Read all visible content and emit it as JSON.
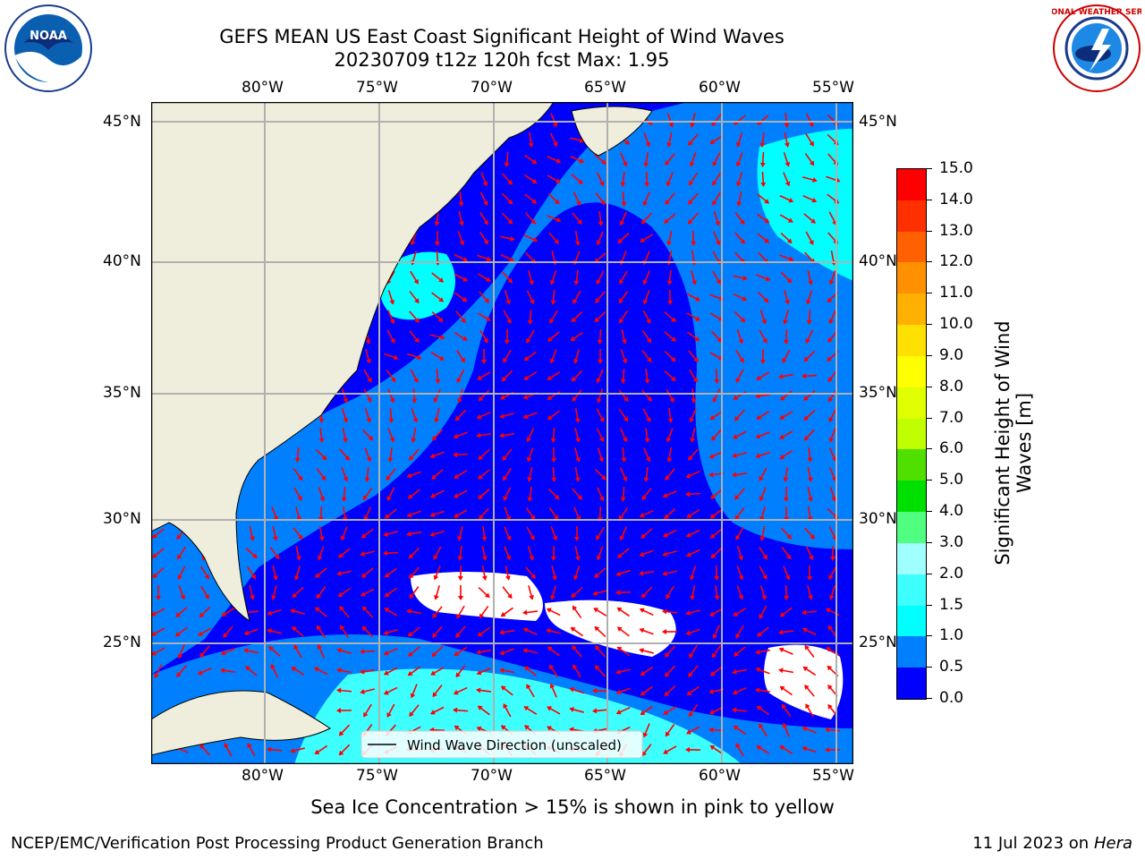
{
  "header": {
    "title_line1": "GEFS MEAN US East Coast Significant Height of Wind Waves",
    "title_line2": "20230709 t12z 120h fcst   Max: 1.95"
  },
  "logos": {
    "left": {
      "name": "noaa-logo",
      "text": "NOAA"
    },
    "right": {
      "name": "nws-logo",
      "text": "NATIONAL WEATHER SERVICE"
    }
  },
  "map": {
    "lon_labels": [
      "80°W",
      "75°W",
      "70°W",
      "65°W",
      "60°W",
      "55°W"
    ],
    "lat_labels": [
      "45°N",
      "40°N",
      "35°N",
      "30°N",
      "25°N"
    ],
    "legend_label": "Wind Wave Direction (unscaled)",
    "colors": {
      "land": "#efeedc",
      "gridline": "#b0b0b0",
      "arrow": "#ff0000"
    }
  },
  "colorbar": {
    "label_line1": "Significant Height of Wind",
    "label_line2": "Waves [m]",
    "ticks": [
      "0.0",
      "0.5",
      "1.0",
      "1.5",
      "2.0",
      "3.0",
      "4.0",
      "5.0",
      "6.0",
      "7.0",
      "8.0",
      "9.0",
      "10.0",
      "11.0",
      "12.0",
      "13.0",
      "14.0",
      "15.0"
    ],
    "colors": [
      "#0000ff",
      "#0080ff",
      "#00ffff",
      "#3dffff",
      "#a0ffff",
      "#50ff80",
      "#00e000",
      "#50e000",
      "#c0ff00",
      "#e0ff00",
      "#ffff00",
      "#ffe000",
      "#ffb000",
      "#ff9000",
      "#ff6000",
      "#ff3000",
      "#ff0000"
    ]
  },
  "footer": {
    "ice_note": "Sea Ice Concentration > 15% is shown in pink to yellow",
    "left": "NCEP/EMC/Verification Post Processing Product Generation Branch",
    "right_date": "11 Jul 2023 on ",
    "right_host": "Hera"
  }
}
